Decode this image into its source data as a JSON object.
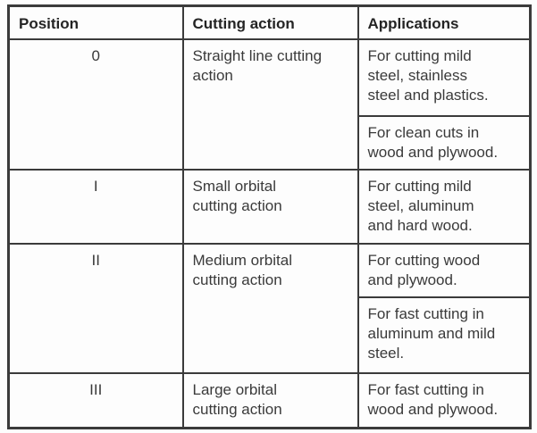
{
  "table": {
    "headers": {
      "position": "Position",
      "action": "Cutting action",
      "applications": "Applications"
    },
    "rows": [
      {
        "position": "0",
        "action": "Straight line cutting\naction",
        "applications": [
          "For cutting mild\nsteel, stainless\nsteel and plastics.",
          "For clean cuts in\nwood and plywood."
        ]
      },
      {
        "position": "I",
        "action": "Small orbital\ncutting action",
        "applications": [
          "For cutting mild\nsteel, aluminum\nand hard wood."
        ]
      },
      {
        "position": "II",
        "action": "Medium orbital\ncutting action",
        "applications": [
          "For cutting wood\nand plywood.",
          "For fast cutting in\naluminum and mild\nsteel."
        ]
      },
      {
        "position": "III",
        "action": "Large orbital\ncutting action",
        "applications": [
          "For fast cutting in\nwood and plywood."
        ]
      }
    ],
    "colors": {
      "border": "#3b3b3b",
      "text": "#3a3a3a",
      "background": "#fdfdfd"
    }
  }
}
